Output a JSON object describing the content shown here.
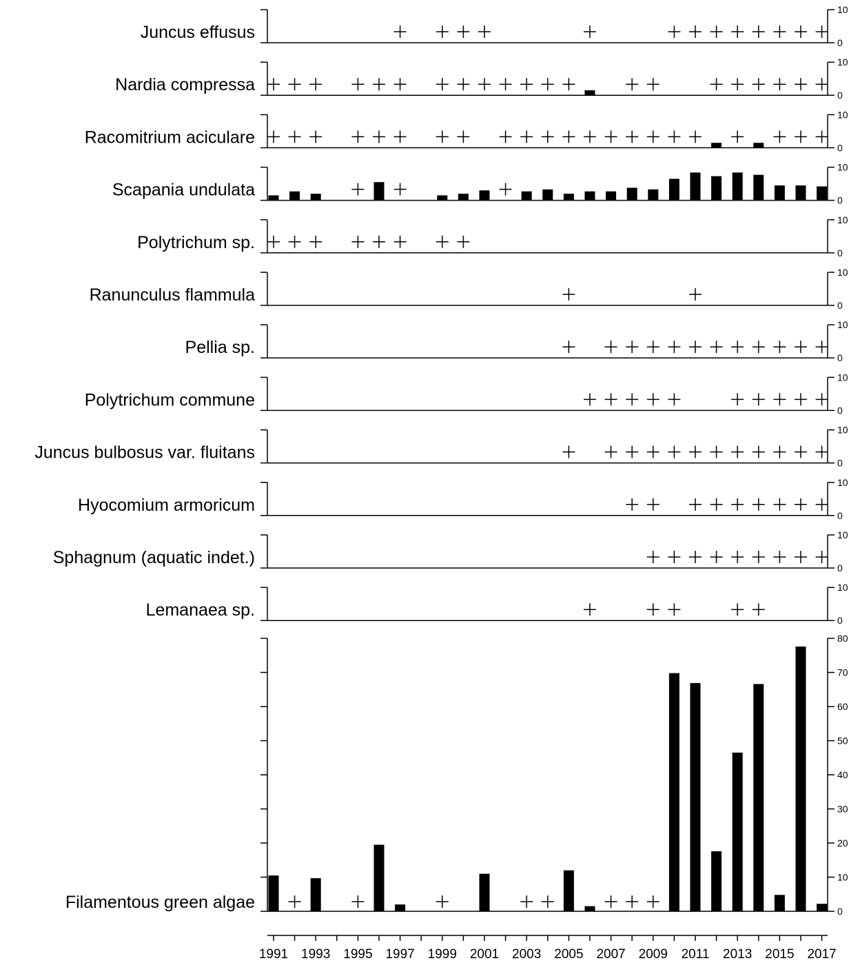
{
  "chart_data": {
    "type": "bar",
    "title": "",
    "xlabel": "",
    "ylabel": "",
    "legend": "none",
    "grid": false,
    "years": [
      1991,
      1992,
      1993,
      1994,
      1995,
      1996,
      1997,
      1998,
      1999,
      2000,
      2001,
      2002,
      2003,
      2004,
      2005,
      2006,
      2007,
      2008,
      2009,
      2010,
      2011,
      2012,
      2013,
      2014,
      2015,
      2016,
      2017
    ],
    "x_tick_labels": [
      "1991",
      "1993",
      "1995",
      "1997",
      "1999",
      "2001",
      "2003",
      "2005",
      "2007",
      "2009",
      "2011",
      "2013",
      "2015",
      "2017"
    ],
    "small_panel_ylim": [
      0,
      10
    ],
    "small_panel_ticks": [
      "0",
      "10"
    ],
    "large_panel_ylim": [
      0,
      80
    ],
    "large_panel_ticks": [
      "0",
      "10",
      "20",
      "30",
      "40",
      "50",
      "60",
      "70",
      "80"
    ],
    "presence_symbol": "+",
    "series": [
      {
        "name": "Juncus effusus",
        "present": [
          1997,
          1999,
          2000,
          2001,
          2006,
          2010,
          2011,
          2012,
          2013,
          2014,
          2015,
          2016,
          2017
        ],
        "bars": []
      },
      {
        "name": "Nardia compressa",
        "present": [
          1991,
          1992,
          1993,
          1995,
          1996,
          1997,
          1999,
          2000,
          2001,
          2002,
          2003,
          2004,
          2005,
          2008,
          2009,
          2012,
          2013,
          2014,
          2015,
          2016,
          2017
        ],
        "bars": [
          {
            "year": 2006,
            "value": 1.5
          }
        ]
      },
      {
        "name": "Racomitrium aciculare",
        "present": [
          1991,
          1992,
          1993,
          1995,
          1996,
          1997,
          1999,
          2000,
          2002,
          2003,
          2004,
          2005,
          2006,
          2007,
          2008,
          2009,
          2010,
          2011,
          2013,
          2015,
          2016,
          2017
        ],
        "bars": [
          {
            "year": 2012,
            "value": 1.5
          },
          {
            "year": 2014,
            "value": 1.5
          }
        ]
      },
      {
        "name": "Scapania undulata",
        "present": [
          1995,
          1997,
          2002
        ],
        "bars": [
          {
            "year": 1991,
            "value": 1.5
          },
          {
            "year": 1992,
            "value": 2.7
          },
          {
            "year": 1993,
            "value": 2
          },
          {
            "year": 1996,
            "value": 5.5
          },
          {
            "year": 1999,
            "value": 1.5
          },
          {
            "year": 2000,
            "value": 2
          },
          {
            "year": 2001,
            "value": 3
          },
          {
            "year": 2003,
            "value": 2.7
          },
          {
            "year": 2004,
            "value": 3.3
          },
          {
            "year": 2005,
            "value": 2
          },
          {
            "year": 2006,
            "value": 2.7
          },
          {
            "year": 2007,
            "value": 2.7
          },
          {
            "year": 2008,
            "value": 3.8
          },
          {
            "year": 2009,
            "value": 3.3
          },
          {
            "year": 2010,
            "value": 6.5
          },
          {
            "year": 2011,
            "value": 8.4
          },
          {
            "year": 2012,
            "value": 7.3
          },
          {
            "year": 2013,
            "value": 8.4
          },
          {
            "year": 2014,
            "value": 7.7
          },
          {
            "year": 2015,
            "value": 4.5
          },
          {
            "year": 2016,
            "value": 4.5
          },
          {
            "year": 2017,
            "value": 4.2
          }
        ]
      },
      {
        "name": "Polytrichum sp.",
        "present": [
          1991,
          1992,
          1993,
          1995,
          1996,
          1997,
          1999,
          2000
        ],
        "bars": []
      },
      {
        "name": "Ranunculus flammula",
        "present": [
          2005,
          2011
        ],
        "bars": []
      },
      {
        "name": "Pellia sp.",
        "present": [
          2005,
          2007,
          2008,
          2009,
          2010,
          2011,
          2012,
          2013,
          2014,
          2015,
          2016,
          2017
        ],
        "bars": []
      },
      {
        "name": "Polytrichum commune",
        "present": [
          2006,
          2007,
          2008,
          2009,
          2010,
          2013,
          2014,
          2015,
          2016,
          2017
        ],
        "bars": []
      },
      {
        "name": "Juncus bulbosus var. fluitans",
        "present": [
          2005,
          2007,
          2008,
          2009,
          2010,
          2011,
          2012,
          2013,
          2014,
          2015,
          2016,
          2017
        ],
        "bars": []
      },
      {
        "name": "Hyocomium armoricum",
        "present": [
          2008,
          2009,
          2011,
          2012,
          2013,
          2014,
          2015,
          2016,
          2017
        ],
        "bars": []
      },
      {
        "name": "Sphagnum (aquatic indet.)",
        "present": [
          2009,
          2010,
          2011,
          2012,
          2013,
          2014,
          2015,
          2016,
          2017
        ],
        "bars": []
      },
      {
        "name": "Lemanaea sp.",
        "present": [
          2006,
          2009,
          2010,
          2013,
          2014
        ],
        "bars": []
      },
      {
        "name": "Filamentous green algae",
        "present": [
          1992,
          1995,
          1999,
          2003,
          2004,
          2007,
          2008,
          2009
        ],
        "bars": [
          {
            "year": 1991,
            "value": 10.5
          },
          {
            "year": 1993,
            "value": 9.7
          },
          {
            "year": 1996,
            "value": 19.5
          },
          {
            "year": 1997,
            "value": 2
          },
          {
            "year": 2001,
            "value": 11
          },
          {
            "year": 2005,
            "value": 12
          },
          {
            "year": 2006,
            "value": 1.5
          },
          {
            "year": 2010,
            "value": 69.8
          },
          {
            "year": 2011,
            "value": 66.9
          },
          {
            "year": 2012,
            "value": 17.6
          },
          {
            "year": 2013,
            "value": 46.5
          },
          {
            "year": 2014,
            "value": 66.6
          },
          {
            "year": 2015,
            "value": 4.8
          },
          {
            "year": 2016,
            "value": 77.6
          },
          {
            "year": 2017,
            "value": 2.2
          }
        ]
      }
    ]
  }
}
